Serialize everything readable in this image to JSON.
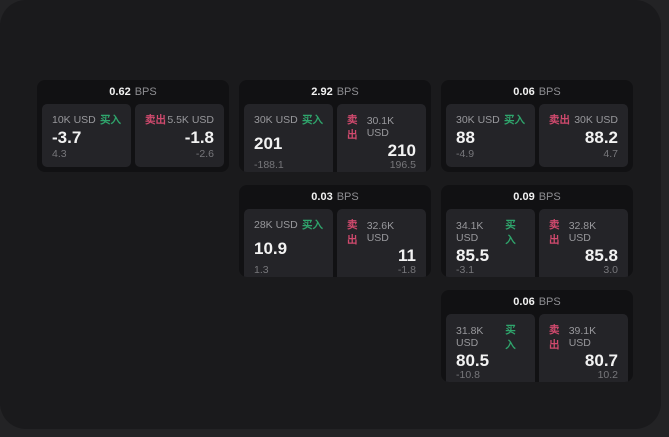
{
  "labels": {
    "bps_unit": "BPS",
    "buy": "买入",
    "sell": "卖出"
  },
  "colors": {
    "buy": "#2fa56c",
    "sell": "#d14a6e",
    "backdrop": "#232325",
    "window_bg": "#1a1a1c",
    "card_bg": "#111113",
    "panel_bg": "#242428"
  },
  "cards": [
    {
      "bps": "0.62",
      "buy": {
        "amount": "10K USD",
        "price": "-3.7",
        "delta": "4.3"
      },
      "sell": {
        "amount": "5.5K USD",
        "price": "-1.8",
        "delta": "-2.6"
      }
    },
    {
      "bps": "2.92",
      "buy": {
        "amount": "30K USD",
        "price": "201",
        "delta": "-188.1"
      },
      "sell": {
        "amount": "30.1K USD",
        "price": "210",
        "delta": "196.5"
      }
    },
    {
      "bps": "0.06",
      "buy": {
        "amount": "30K USD",
        "price": "88",
        "delta": "-4.9"
      },
      "sell": {
        "amount": "30K USD",
        "price": "88.2",
        "delta": "4.7"
      }
    },
    {
      "bps": "0.03",
      "buy": {
        "amount": "28K USD",
        "price": "10.9",
        "delta": "1.3"
      },
      "sell": {
        "amount": "32.6K USD",
        "price": "11",
        "delta": "-1.8"
      }
    },
    {
      "bps": "0.09",
      "buy": {
        "amount": "34.1K USD",
        "price": "85.5",
        "delta": "-3.1"
      },
      "sell": {
        "amount": "32.8K USD",
        "price": "85.8",
        "delta": "3.0"
      }
    },
    {
      "bps": "0.06",
      "buy": {
        "amount": "31.8K USD",
        "price": "80.5",
        "delta": "-10.8"
      },
      "sell": {
        "amount": "39.1K USD",
        "price": "80.7",
        "delta": "10.2"
      }
    }
  ]
}
